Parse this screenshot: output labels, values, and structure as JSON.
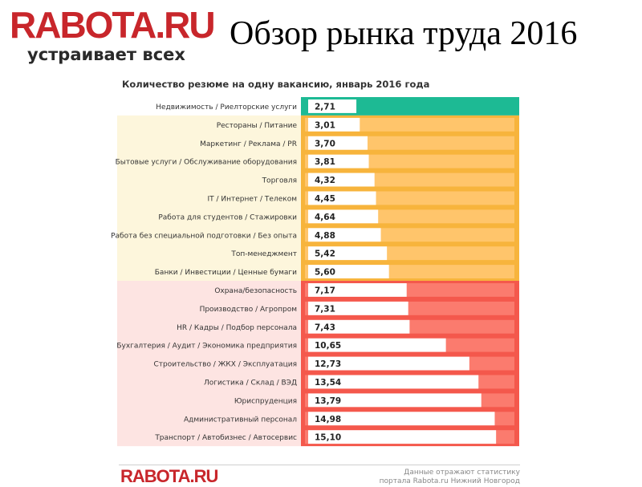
{
  "logo": {
    "main": "RABOTA.RU",
    "tagline": "устраивает всех"
  },
  "slide_title": "Обзор рынка труда 2016",
  "colors": {
    "teal": "#1dba94",
    "orange": "#f7b43c",
    "orange_light": "#ffc56b",
    "orange_bg": "#fdf6dc",
    "red": "#f4584c",
    "red_light": "#fb7b6e",
    "red_bg": "#fde4e2"
  },
  "chart_data": {
    "type": "bar",
    "orientation": "horizontal",
    "title": "Количество резюме на одну вакансию, январь 2016 года",
    "xlim": [
      0,
      18
    ],
    "categories": [
      "Недвижимость / Риелторские услуги",
      "Рестораны / Питание",
      "Маркетинг / Реклама / PR",
      "Бытовые услуги / Обслуживание оборудования",
      "Торговля",
      "IT / Интернет / Телеком",
      "Работа для студентов / Стажировки",
      "Работа без специальной подготовки / Без опыта",
      "Топ-менеджмент",
      "Банки / Инвестиции / Ценные бумаги",
      "Охрана/безопасность",
      "Производство / Агропром",
      "HR / Кадры / Подбор персонала",
      "Бухгалтерия / Аудит / Экономика предприятия",
      "Строительство / ЖКХ / Эксплуатация",
      "Логистика / Склад / ВЭД",
      "Юриспруденция",
      "Административный персонал",
      "Транспорт / Автобизнес / Автосервис"
    ],
    "values": [
      2.71,
      3.01,
      3.7,
      3.81,
      4.32,
      4.45,
      4.64,
      4.88,
      5.42,
      5.6,
      7.17,
      7.31,
      7.43,
      10.65,
      12.73,
      13.54,
      13.79,
      14.98,
      15.1
    ],
    "value_labels": [
      "2,71",
      "3,01",
      "3,70",
      "3,81",
      "4,32",
      "4,45",
      "4,64",
      "4,88",
      "5,42",
      "5,60",
      "7,17",
      "7,31",
      "7,43",
      "10,65",
      "12,73",
      "13,54",
      "13,79",
      "14,98",
      "15,10"
    ],
    "groups": [
      {
        "color": "teal",
        "rows": [
          0
        ]
      },
      {
        "color": "orange",
        "rows": [
          1,
          2,
          3,
          4,
          5,
          6,
          7,
          8,
          9
        ]
      },
      {
        "color": "red",
        "rows": [
          10,
          11,
          12,
          13,
          14,
          15,
          16,
          17,
          18
        ]
      }
    ]
  },
  "footer": {
    "logo": "RABOTA.RU",
    "note": "Данные отражают статистику порталa Rabota.ru Нижний Новгород"
  }
}
